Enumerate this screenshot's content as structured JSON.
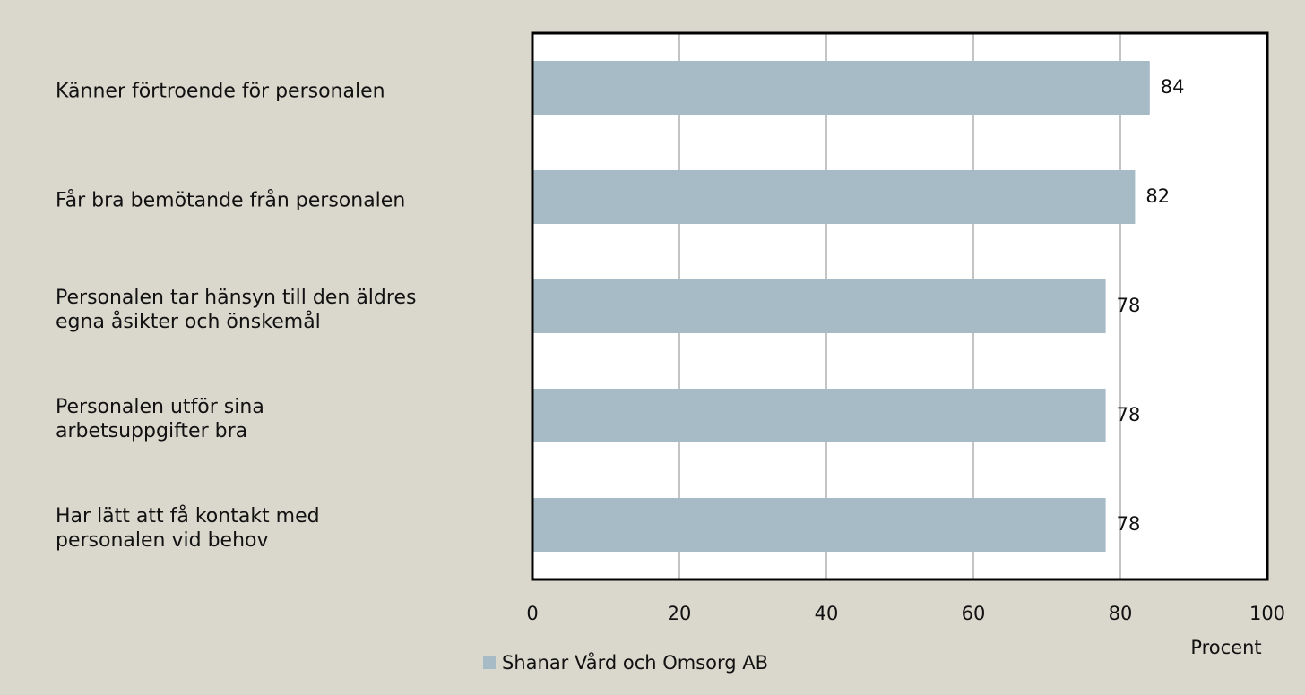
{
  "chart_data": {
    "type": "bar",
    "orientation": "horizontal",
    "categories": [
      "Känner förtroende för personalen",
      "Får bra bemötande från personalen",
      "Personalen tar hänsyn till den äldres\negna åsikter och önskemål",
      "Personalen utför sina\narbetsuppgifter bra",
      "Har lätt att få kontakt med\npersonalen vid behov"
    ],
    "series": [
      {
        "name": "Shanar Vård och Omsorg AB",
        "color": "#a7bbc7",
        "values": [
          84,
          82,
          78,
          78,
          78
        ]
      }
    ],
    "x_label": "Procent",
    "xlim": [
      0,
      100
    ],
    "xticks": [
      0,
      20,
      40,
      60,
      80,
      100
    ],
    "grid": true
  }
}
